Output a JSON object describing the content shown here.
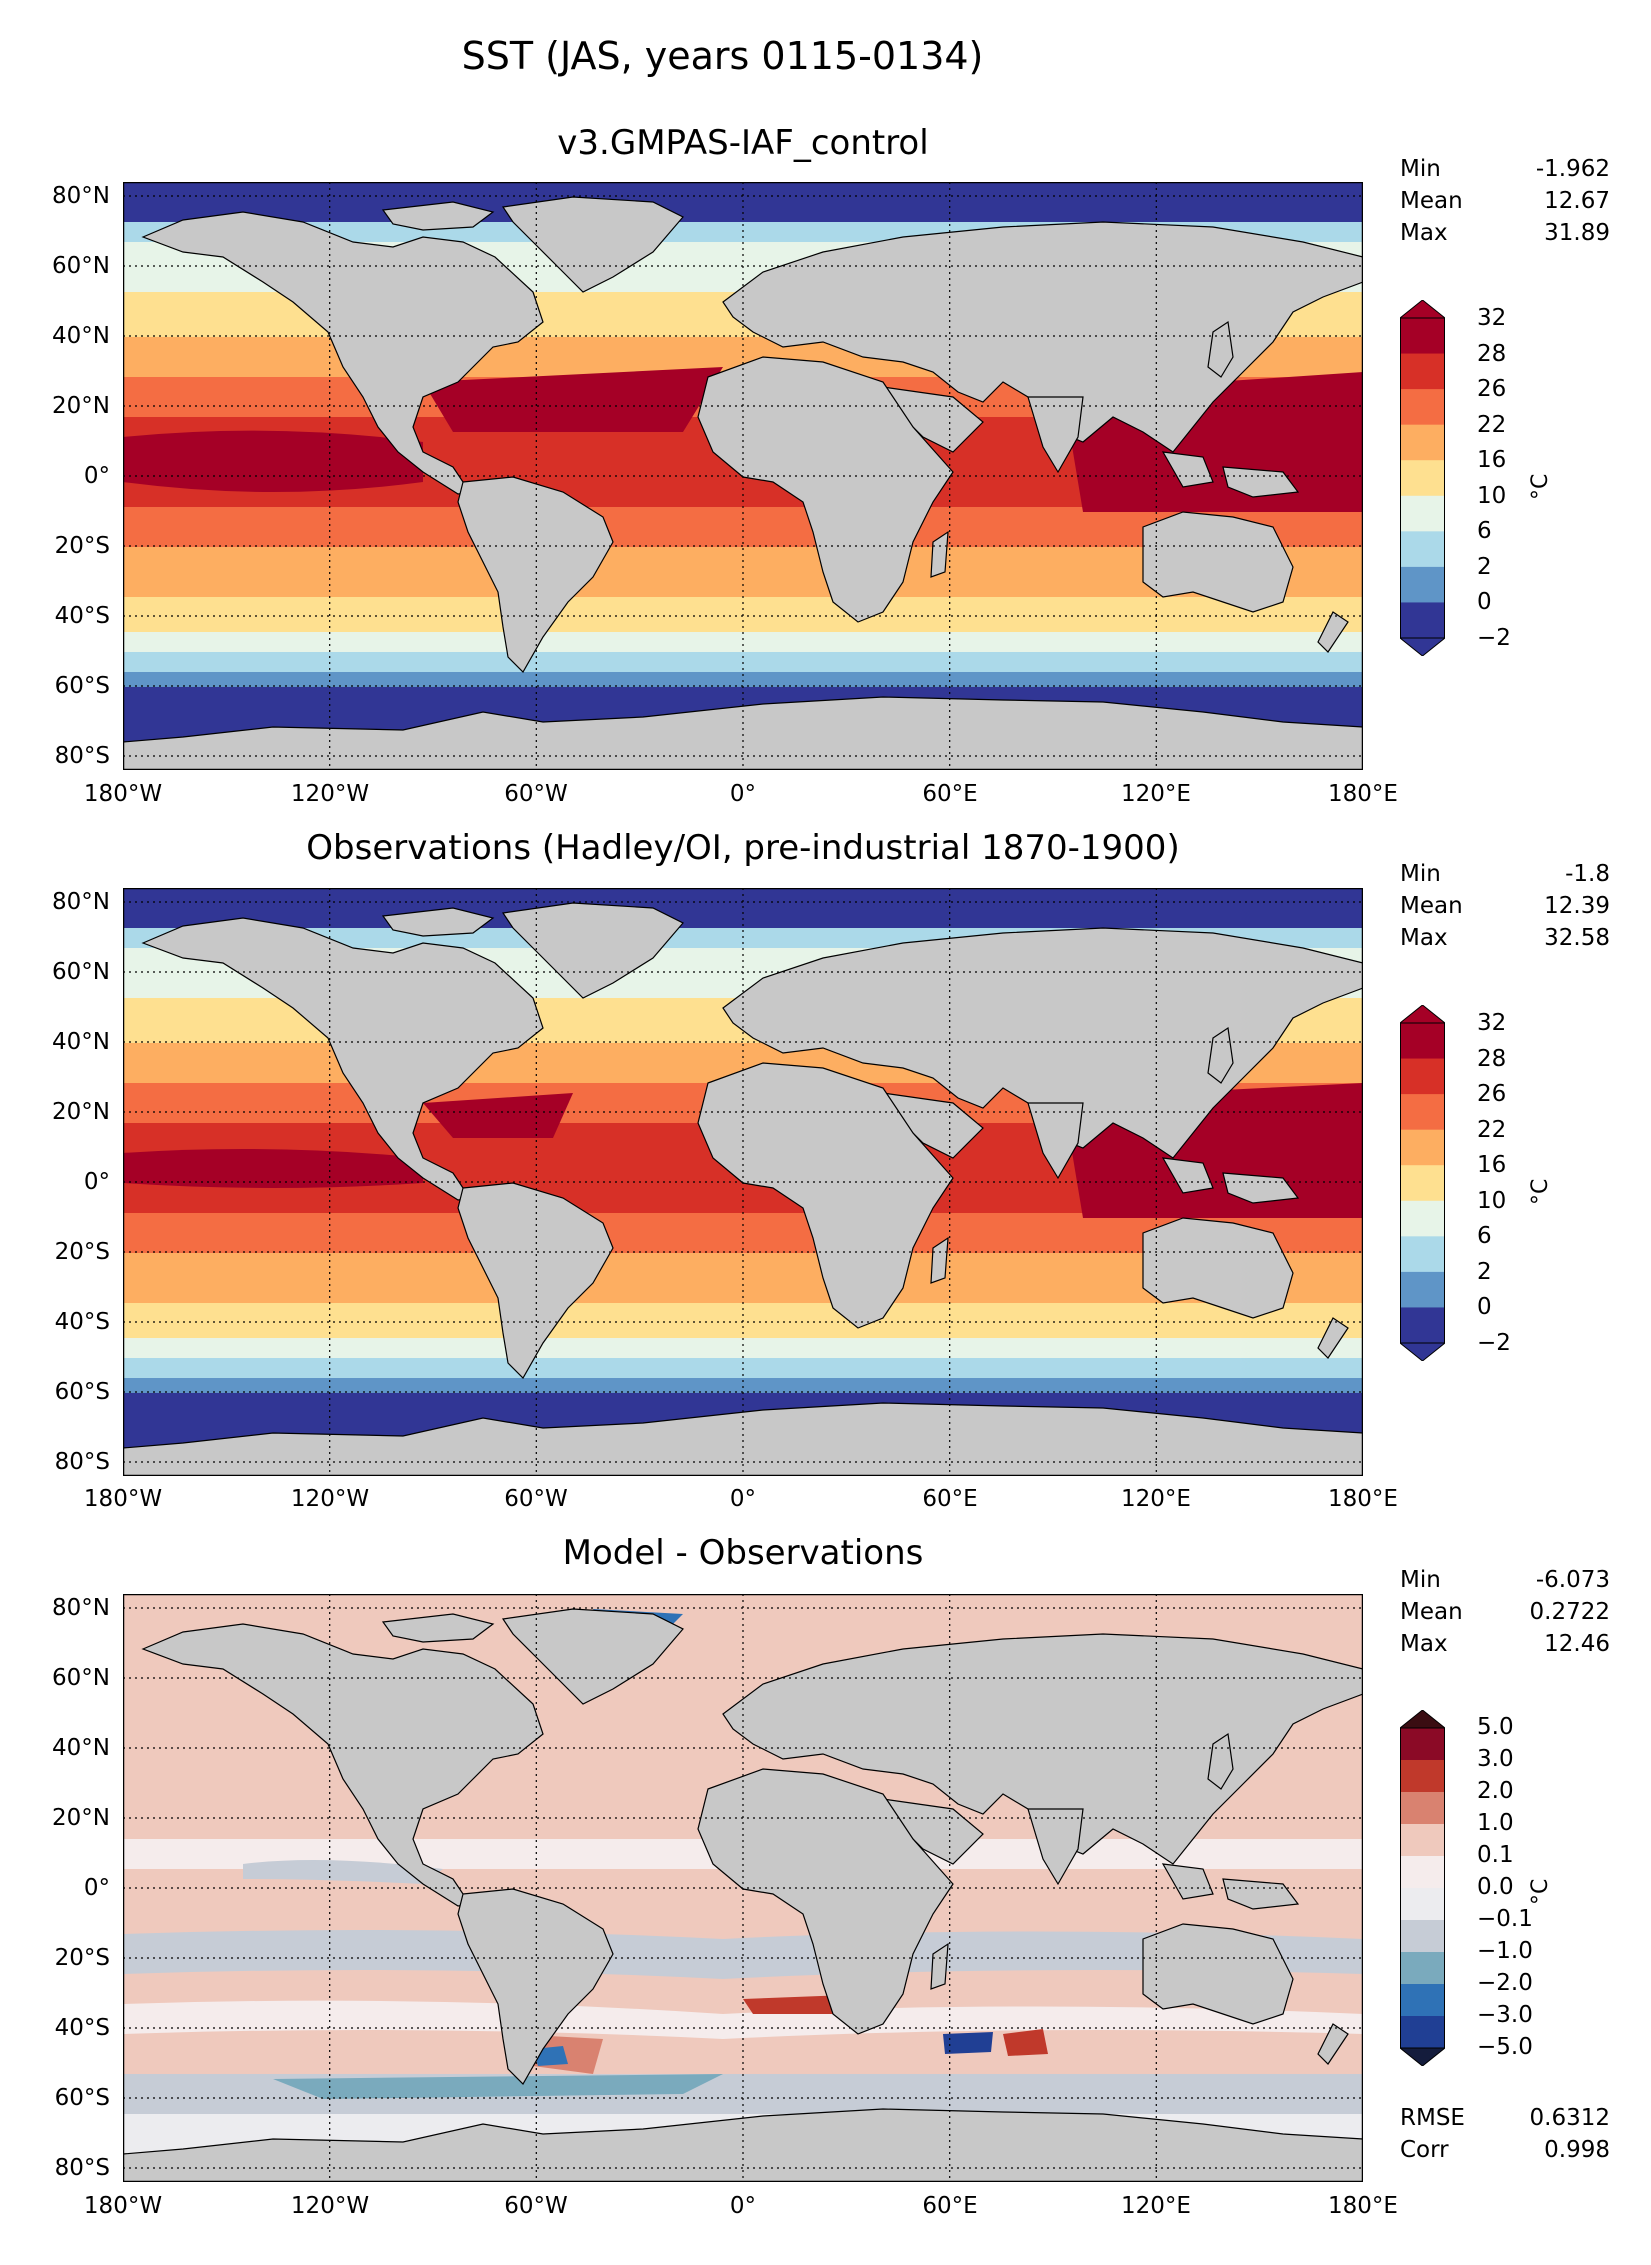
{
  "suptitle": "SST (JAS, years 0115-0134)",
  "lat_labels": [
    "80°N",
    "60°N",
    "40°N",
    "20°N",
    "0°",
    "20°S",
    "40°S",
    "60°S",
    "80°S"
  ],
  "lon_labels": [
    "180°W",
    "120°W",
    "60°W",
    "0°",
    "60°E",
    "120°E",
    "180°E"
  ],
  "panels": [
    {
      "title": "v3.GMPAS-IAF_control",
      "stats": [
        {
          "label": "Min",
          "value": "-1.962"
        },
        {
          "label": "Mean",
          "value": "12.67"
        },
        {
          "label": "Max",
          "value": "31.89"
        }
      ],
      "colorbar": {
        "ticks": [
          "32",
          "28",
          "26",
          "22",
          "16",
          "10",
          "6",
          "2",
          "0",
          "−2"
        ],
        "colors": [
          "#a50026",
          "#d73027",
          "#f46d43",
          "#fdae61",
          "#fee090",
          "#e7f4e8",
          "#abd9e9",
          "#5f95c7",
          "#313695"
        ],
        "extend_colors": {
          "top": "#a50026",
          "bottom": "#313695"
        },
        "unit": "°C"
      }
    },
    {
      "title": "Observations (Hadley/OI, pre-industrial 1870-1900)",
      "stats": [
        {
          "label": "Min",
          "value": "-1.8"
        },
        {
          "label": "Mean",
          "value": "12.39"
        },
        {
          "label": "Max",
          "value": "32.58"
        }
      ],
      "colorbar": {
        "ticks": [
          "32",
          "28",
          "26",
          "22",
          "16",
          "10",
          "6",
          "2",
          "0",
          "−2"
        ],
        "colors": [
          "#a50026",
          "#d73027",
          "#f46d43",
          "#fdae61",
          "#fee090",
          "#e7f4e8",
          "#abd9e9",
          "#5f95c7",
          "#313695"
        ],
        "extend_colors": {
          "top": "#a50026",
          "bottom": "#313695"
        },
        "unit": "°C"
      }
    },
    {
      "title": "Model - Observations",
      "stats": [
        {
          "label": "Min",
          "value": "-6.073"
        },
        {
          "label": "Mean",
          "value": "0.2722"
        },
        {
          "label": "Max",
          "value": "12.46"
        }
      ],
      "extra_stats": [
        {
          "label": "RMSE",
          "value": "0.6312"
        },
        {
          "label": "Corr",
          "value": "0.998"
        }
      ],
      "colorbar": {
        "ticks": [
          "5.0",
          "3.0",
          "2.0",
          "1.0",
          "0.1",
          "0.0",
          "−0.1",
          "−1.0",
          "−2.0",
          "−3.0",
          "−5.0"
        ],
        "colors": [
          "#8b0a26",
          "#c0392b",
          "#d98270",
          "#efc9bd",
          "#f5ecec",
          "#ececef",
          "#c6ccd6",
          "#7aaabd",
          "#2f72b6",
          "#203f94"
        ],
        "extend_colors": {
          "top": "#3a0d12",
          "bottom": "#141c3c"
        },
        "unit": "°C"
      }
    }
  ]
}
